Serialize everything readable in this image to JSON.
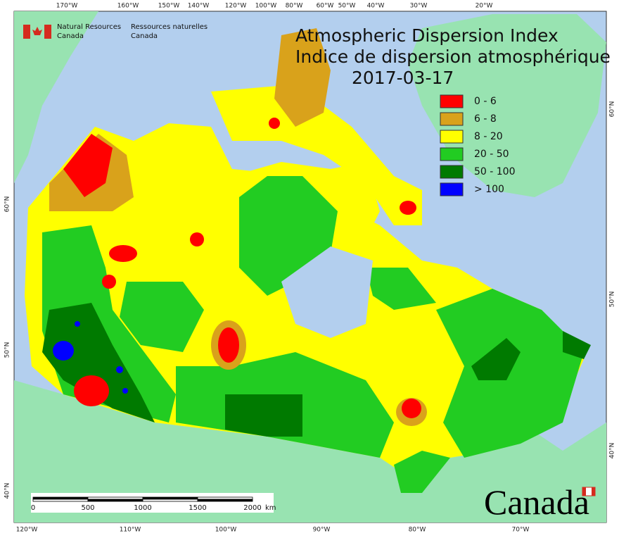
{
  "header": {
    "agency_en": [
      "Natural Resources",
      "Canada"
    ],
    "agency_fr": [
      "Ressources naturelles",
      "Canada"
    ]
  },
  "title": [
    "Atmospheric Dispersion Index",
    "Indice de dispersion atmosphérique"
  ],
  "date": "2017-03-17",
  "legend": [
    {
      "label": "0 - 6",
      "color": "#ff0000"
    },
    {
      "label": "6 - 8",
      "color": "#d9a21b"
    },
    {
      "label": "8 - 20",
      "color": "#ffff00"
    },
    {
      "label": "20 - 50",
      "color": "#22cc22"
    },
    {
      "label": "50 - 100",
      "color": "#007a00"
    },
    {
      "label": "> 100",
      "color": "#0000ff"
    }
  ],
  "graticule": {
    "top": [
      "170°W",
      "160°W",
      "150°W",
      "140°W",
      "120°W",
      "100°W",
      "80°W",
      "60°W",
      "50°W",
      "40°W",
      "30°W",
      "20°W"
    ],
    "bottom": [
      "120°W",
      "110°W",
      "100°W",
      "90°W",
      "80°W",
      "70°W"
    ],
    "left": [
      "60°N",
      "50°N",
      "40°N"
    ],
    "right": [
      "60°N",
      "50°N",
      "40°N"
    ]
  },
  "scale_bar": {
    "labels": [
      "0",
      "500",
      "1000",
      "1500",
      "2000"
    ],
    "unit": "km"
  },
  "wordmark": "Canada"
}
